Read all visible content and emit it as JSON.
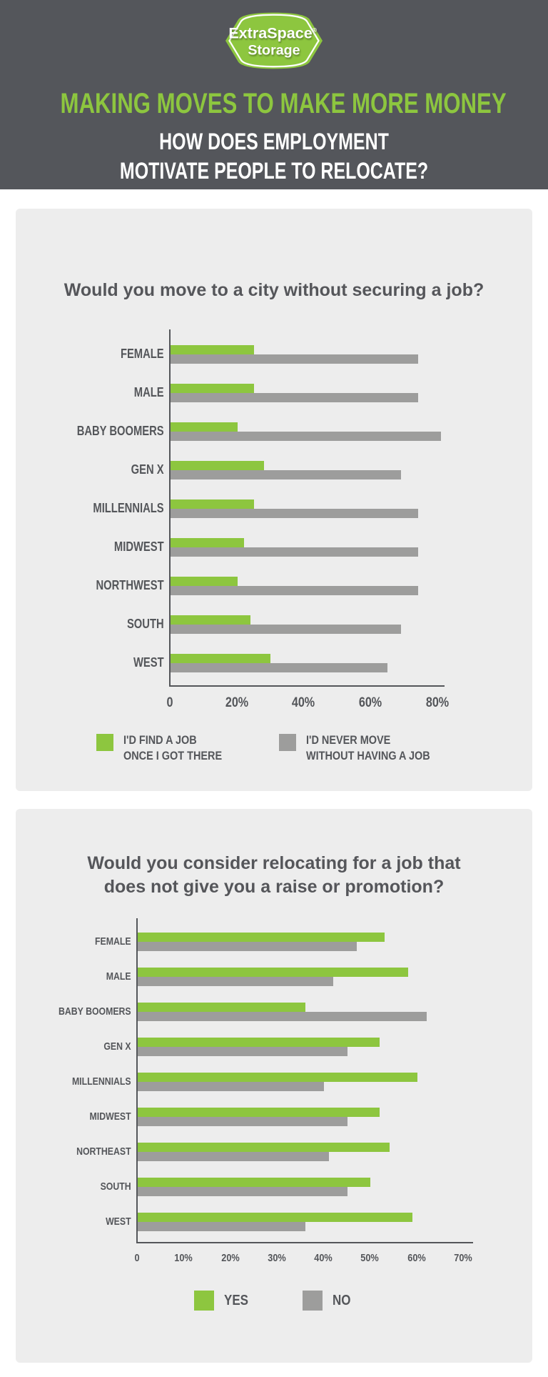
{
  "header": {
    "logo": {
      "line1": "ExtraSpace",
      "reg_mark": "®",
      "line2": "Storage"
    },
    "title": "MAKING MOVES TO MAKE MORE MONEY",
    "subtitle_line1": "HOW DOES EMPLOYMENT",
    "subtitle_line2": "MOTIVATE PEOPLE TO RELOCATE?"
  },
  "colors": {
    "accent_green": "#8DC63F",
    "bar_gray": "#9D9D9C",
    "header_bg": "#54565B",
    "panel_bg": "#EDEDED",
    "text_dark": "#54565A"
  },
  "chart_data": [
    {
      "type": "bar",
      "orientation": "horizontal",
      "title": "Would you move to a city without securing a job?",
      "title_lines": [
        "Would you move to a city without securing a job?"
      ],
      "categories": [
        "FEMALE",
        "MALE",
        "BABY BOOMERS",
        "GEN X",
        "MILLENNIALS",
        "MIDWEST",
        "NORTHWEST",
        "SOUTH",
        "WEST"
      ],
      "series": [
        {
          "name": "I'D FIND A JOB ONCE I GOT THERE",
          "legend_lines": [
            "I'D FIND A JOB",
            "ONCE I GOT THERE"
          ],
          "color": "#8DC63F",
          "values": [
            25,
            25,
            20,
            28,
            25,
            22,
            20,
            24,
            30
          ]
        },
        {
          "name": "I'D NEVER MOVE WITHOUT HAVING A JOB",
          "legend_lines": [
            "I'D NEVER MOVE",
            "WITHOUT HAVING A JOB"
          ],
          "color": "#9D9D9C",
          "values": [
            74,
            74,
            81,
            69,
            74,
            74,
            74,
            69,
            65
          ]
        }
      ],
      "xlim": [
        0,
        82
      ],
      "ticks": [
        {
          "value": 0,
          "label": "0"
        },
        {
          "value": 20,
          "label": "20%"
        },
        {
          "value": 40,
          "label": "40%"
        },
        {
          "value": 60,
          "label": "60%"
        },
        {
          "value": 80,
          "label": "80%"
        }
      ],
      "grid": false,
      "legend_position": "bottom"
    },
    {
      "type": "bar",
      "orientation": "horizontal",
      "title": "Would you consider relocating for a job that does not give you a raise or promotion?",
      "title_lines": [
        "Would you consider relocating for a job that",
        "does not give you a raise or promotion?"
      ],
      "categories": [
        "FEMALE",
        "MALE",
        "BABY BOOMERS",
        "GEN X",
        "MILLENNIALS",
        "MIDWEST",
        "NORTHEAST",
        "SOUTH",
        "WEST"
      ],
      "series": [
        {
          "name": "YES",
          "legend_lines": [
            "YES"
          ],
          "color": "#8DC63F",
          "values": [
            53,
            58,
            36,
            52,
            60,
            52,
            54,
            50,
            59
          ]
        },
        {
          "name": "NO",
          "legend_lines": [
            "NO"
          ],
          "color": "#9D9D9C",
          "values": [
            47,
            42,
            62,
            45,
            40,
            45,
            41,
            45,
            36
          ]
        }
      ],
      "xlim": [
        0,
        72
      ],
      "ticks": [
        {
          "value": 0,
          "label": "0"
        },
        {
          "value": 10,
          "label": "10%"
        },
        {
          "value": 20,
          "label": "20%"
        },
        {
          "value": 30,
          "label": "30%"
        },
        {
          "value": 40,
          "label": "40%"
        },
        {
          "value": 50,
          "label": "50%"
        },
        {
          "value": 60,
          "label": "60%"
        },
        {
          "value": 70,
          "label": "70%"
        }
      ],
      "grid": false,
      "legend_position": "bottom"
    }
  ]
}
